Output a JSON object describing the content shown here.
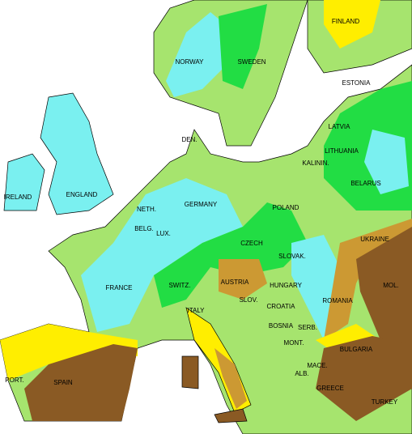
{
  "labels": [
    "FINLAND",
    "NORWAY",
    "SWEDEN",
    "ESTONIA",
    "LATVIA",
    "DEN.",
    "LITHUANIA",
    "KALININ.",
    "IRELAND",
    "ENGLAND",
    "BELARUS",
    "NETH.",
    "GERMANY",
    "POLAND",
    "BELG.",
    "LUX.",
    "UKRAINE",
    "CZECH",
    "SLOVAK.",
    "FRANCE",
    "SWITZ.",
    "AUSTRIA",
    "HUNGARY",
    "MOL.",
    "ROMANIA",
    "ITALY",
    "SLOV.",
    "CROATIA",
    "BOSNIA",
    "SERB.",
    "MONT.",
    "BULGARIA",
    "MACE.",
    "ALB.",
    "GREECE",
    "PORT.",
    "SPAIN",
    "TURKEY"
  ]
}
